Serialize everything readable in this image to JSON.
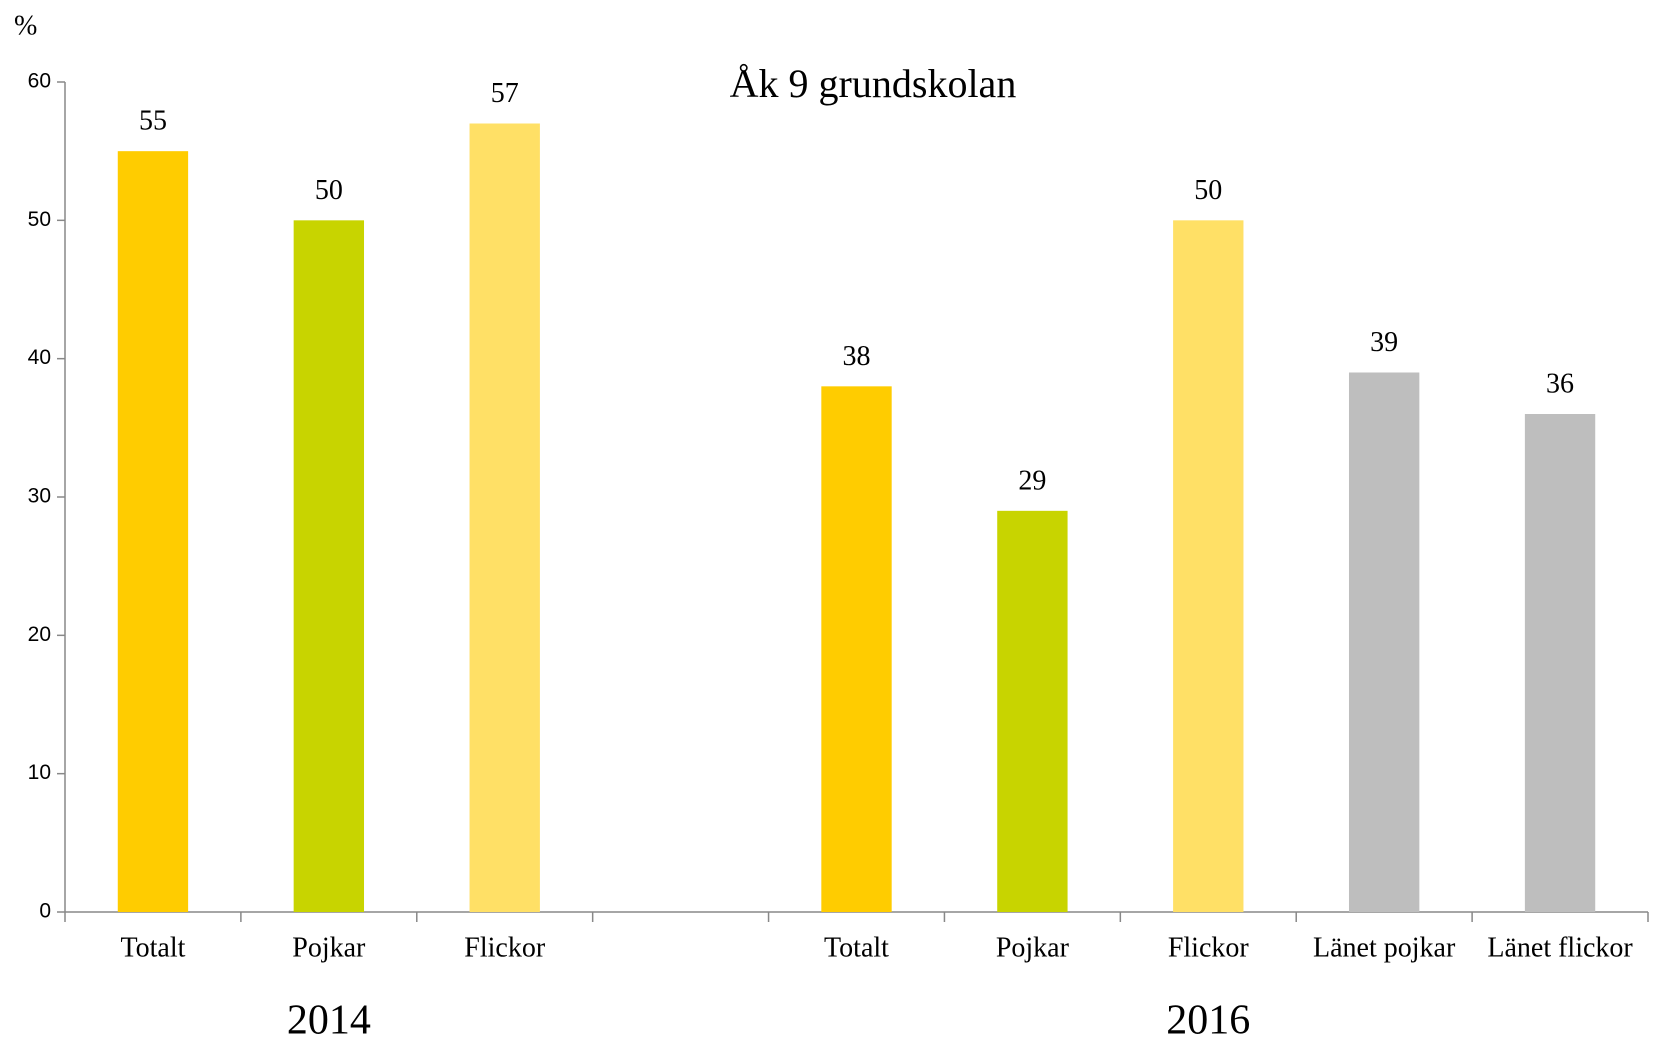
{
  "chart_data": {
    "type": "bar",
    "title": "Åk 9 grundskolan",
    "y_label": "%",
    "categories": [
      "Totalt",
      "Pojkar",
      "Flickor",
      null,
      "Totalt",
      "Pojkar",
      "Flickor",
      "Länet pojkar",
      "Länet flickor"
    ],
    "values": [
      55,
      50,
      57,
      null,
      38,
      29,
      50,
      39,
      36
    ],
    "colors": [
      "#ffcc00",
      "#c8d400",
      "#ffe066",
      null,
      "#ffcc00",
      "#c8d400",
      "#ffe066",
      "#bebebe",
      "#bebebe"
    ],
    "groups": [
      "2014",
      "2016"
    ],
    "ylim": [
      0,
      60
    ],
    "yticks": [
      0,
      10,
      20,
      30,
      40,
      50,
      60
    ],
    "grid": false
  }
}
